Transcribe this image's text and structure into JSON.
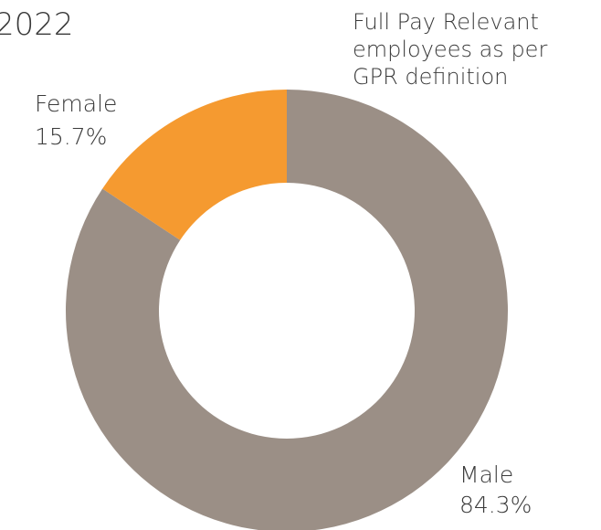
{
  "chart_data": {
    "type": "donut",
    "title": "2022",
    "annotation": [
      "Full Pay Relevant",
      "employees as per",
      "GPR definition"
    ],
    "categories": [
      "Male",
      "Female"
    ],
    "values": [
      84.3,
      15.7
    ],
    "value_labels": [
      "84.3%",
      "15.7%"
    ],
    "colors": [
      "#9b8f86",
      "#f59a30"
    ]
  }
}
